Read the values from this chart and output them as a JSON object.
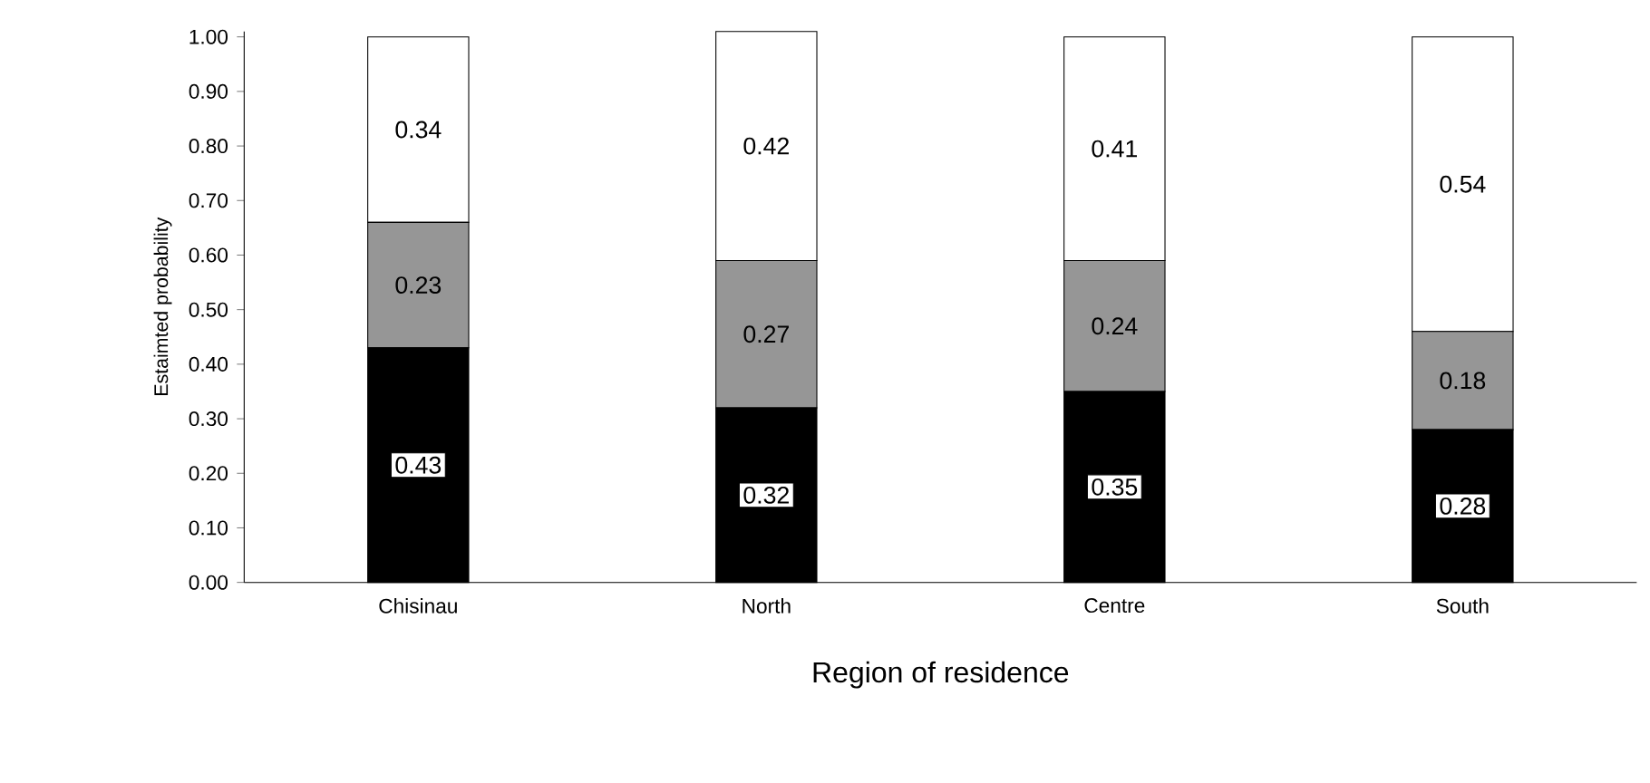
{
  "chart_data": {
    "type": "bar",
    "stacked": true,
    "xlabel": "Region of residence",
    "ylabel": "Estaimted probability",
    "categories": [
      "Chisinau",
      "North",
      "Centre",
      "South"
    ],
    "series": [
      {
        "color": "#000000",
        "values": [
          0.43,
          0.32,
          0.35,
          0.28
        ]
      },
      {
        "color": "#969696",
        "values": [
          0.23,
          0.27,
          0.24,
          0.18
        ]
      },
      {
        "color": "#ffffff",
        "values": [
          0.34,
          0.42,
          0.41,
          0.54
        ]
      }
    ],
    "ylim": [
      0,
      1.01
    ],
    "yticks": [
      {
        "value": 0,
        "label": "0.00"
      },
      {
        "value": 0.1,
        "label": "0.10"
      },
      {
        "value": 0.2,
        "label": "0.20"
      },
      {
        "value": 0.3,
        "label": "0.30"
      },
      {
        "value": 0.4,
        "label": "0.40"
      },
      {
        "value": 0.5,
        "label": "0.50"
      },
      {
        "value": 0.6,
        "label": "0.60"
      },
      {
        "value": 0.7,
        "label": "0.70"
      },
      {
        "value": 0.8,
        "label": "0.80"
      },
      {
        "value": 0.9,
        "label": "0.90"
      },
      {
        "value": 1,
        "label": "1.00"
      }
    ],
    "data_labels": true
  }
}
